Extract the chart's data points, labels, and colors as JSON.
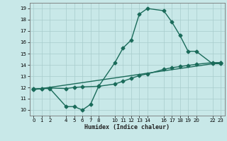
{
  "bg_color": "#c8e8e8",
  "grid_color": "#a8cccc",
  "line_color": "#1a6b5a",
  "line_width": 1.0,
  "marker_size": 2.5,
  "xlabel": "Humidex (Indice chaleur)",
  "xlabel_fontsize": 6.0,
  "xlabel_color": "#222222",
  "tick_fontsize": 5.0,
  "xlim": [
    -0.5,
    23.5
  ],
  "ylim": [
    9.5,
    19.5
  ],
  "yticks": [
    10,
    11,
    12,
    13,
    14,
    15,
    16,
    17,
    18,
    19
  ],
  "xticks": [
    0,
    1,
    2,
    4,
    5,
    6,
    7,
    8,
    10,
    11,
    12,
    13,
    14,
    16,
    17,
    18,
    19,
    20,
    22,
    23
  ],
  "curve1_x": [
    0,
    1,
    2,
    4,
    5,
    6,
    7,
    8,
    10,
    11,
    12,
    13,
    14,
    16,
    17,
    18,
    19,
    20,
    22,
    23
  ],
  "curve1_y": [
    11.85,
    11.9,
    11.9,
    10.3,
    10.3,
    10.0,
    10.5,
    12.1,
    14.2,
    15.5,
    16.2,
    18.5,
    19.0,
    18.8,
    17.8,
    16.6,
    15.2,
    15.2,
    14.1,
    14.1
  ],
  "curve2_x": [
    0,
    23
  ],
  "curve2_y": [
    11.8,
    14.2
  ],
  "curve3_x": [
    0,
    1,
    2,
    4,
    5,
    6,
    8,
    10,
    11,
    12,
    13,
    14,
    16,
    17,
    18,
    19,
    20,
    22,
    23
  ],
  "curve3_y": [
    11.85,
    11.9,
    11.95,
    11.9,
    12.0,
    12.05,
    12.1,
    12.3,
    12.55,
    12.8,
    13.05,
    13.2,
    13.6,
    13.75,
    13.85,
    13.95,
    14.05,
    14.2,
    14.2
  ]
}
